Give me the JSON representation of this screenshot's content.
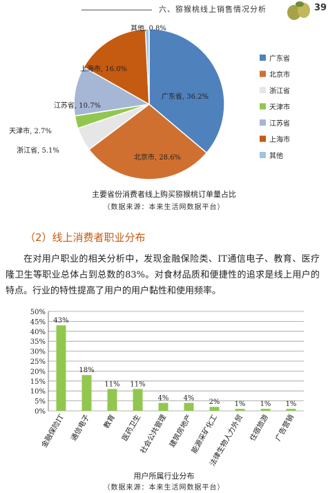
{
  "header": {
    "running_title": "六、猕猴桃线上销售情况分析",
    "page_number": "39"
  },
  "pie": {
    "caption": "主要省份消费者线上购买猕猴桃订单量占比",
    "source": "（数据来源：本来生活网数据平台）",
    "legend": [
      "广东省",
      "北京市",
      "浙江省",
      "天津市",
      "江苏省",
      "上海市",
      "其他"
    ]
  },
  "section": {
    "title": "（2）线上消费者职业分布",
    "paragraph": "在对用户职业的相关分析中，发现金融保险类、IT通信电子、教育、医疗隆卫生等职业总体占到总数的83%。对食材品质和便捷性的追求是线上用户的特点。行业的特性提高了用户的用户黏性和使用频率。"
  },
  "bar": {
    "caption": "用户所属行业分布",
    "source": "（数据来源：本来生活网数据平台）"
  },
  "chart_data": [
    {
      "type": "pie",
      "title": "主要省份消费者线上购买猕猴桃订单量占比",
      "categories": [
        "广东省",
        "北京市",
        "浙江省",
        "天津市",
        "江苏省",
        "上海市",
        "其他"
      ],
      "values": [
        36.2,
        28.6,
        5.1,
        2.7,
        10.7,
        16.0,
        0.8
      ],
      "data_labels": [
        "广东省, 36.2%",
        "北京市, 28.6%",
        "浙江省, 5.1%",
        "天津市, 2.7%",
        "江苏省, 10.7%",
        "上海市, 16.0%",
        "其他, 0.8%"
      ],
      "colors": [
        "#4f81bd",
        "#d07030",
        "#e6e6e6",
        "#92c74f",
        "#a5b7d5",
        "#c55a11",
        "#9dc3e6"
      ],
      "legend_position": "right"
    },
    {
      "type": "bar",
      "title": "用户所属行业分布",
      "categories": [
        "金融保险IT",
        "通信电子",
        "教育",
        "医药卫生",
        "社会公共管理",
        "建筑房地产",
        "能源采矿化工",
        "法律生物人力外贸",
        "住宿旅游",
        "广告营销"
      ],
      "values": [
        43,
        18,
        11,
        11,
        4,
        4,
        2,
        1,
        1,
        1
      ],
      "data_labels": [
        "43%",
        "18%",
        "11%",
        "11%",
        "4%",
        "4%",
        "2%",
        "1%",
        "1%",
        "1%"
      ],
      "y_ticks": [
        "0%",
        "5%",
        "10%",
        "15%",
        "20%",
        "25%",
        "30%",
        "35%",
        "40%",
        "45%",
        "50%"
      ],
      "ylim": [
        0,
        50
      ],
      "grid": true,
      "bar_color": "#92c74f"
    }
  ]
}
